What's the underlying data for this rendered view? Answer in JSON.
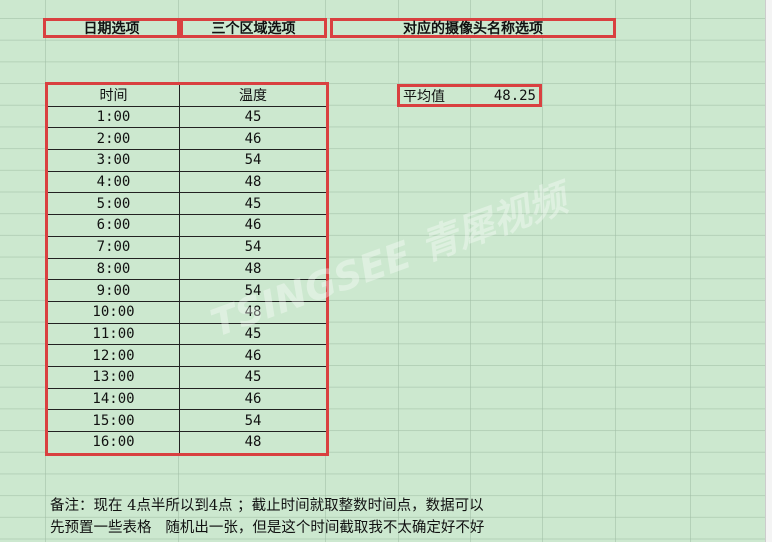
{
  "headers": [
    "日期选项",
    "三个区域选项",
    "对应的摄像头名称选项"
  ],
  "table": {
    "columns": [
      "时间",
      "温度"
    ],
    "rows": [
      [
        "1:00",
        "45"
      ],
      [
        "2:00",
        "46"
      ],
      [
        "3:00",
        "54"
      ],
      [
        "4:00",
        "48"
      ],
      [
        "5:00",
        "45"
      ],
      [
        "6:00",
        "46"
      ],
      [
        "7:00",
        "54"
      ],
      [
        "8:00",
        "48"
      ],
      [
        "9:00",
        "54"
      ],
      [
        "10:00",
        "48"
      ],
      [
        "11:00",
        "45"
      ],
      [
        "12:00",
        "46"
      ],
      [
        "13:00",
        "45"
      ],
      [
        "14:00",
        "46"
      ],
      [
        "15:00",
        "54"
      ],
      [
        "16:00",
        "48"
      ]
    ]
  },
  "average": {
    "label": "平均值",
    "value": "48.25"
  },
  "note": {
    "line1": "备注：现在 4点半所以到4点 ；截止时间就取整数时间点，数据可以",
    "line2": "先预置一些表格   随机出一张，但是这个时间截取我不太确定好不好"
  },
  "watermark": "TSINGSEE 青犀视频",
  "colors": {
    "background": "#cce8cf",
    "highlight_border": "#d94040"
  }
}
